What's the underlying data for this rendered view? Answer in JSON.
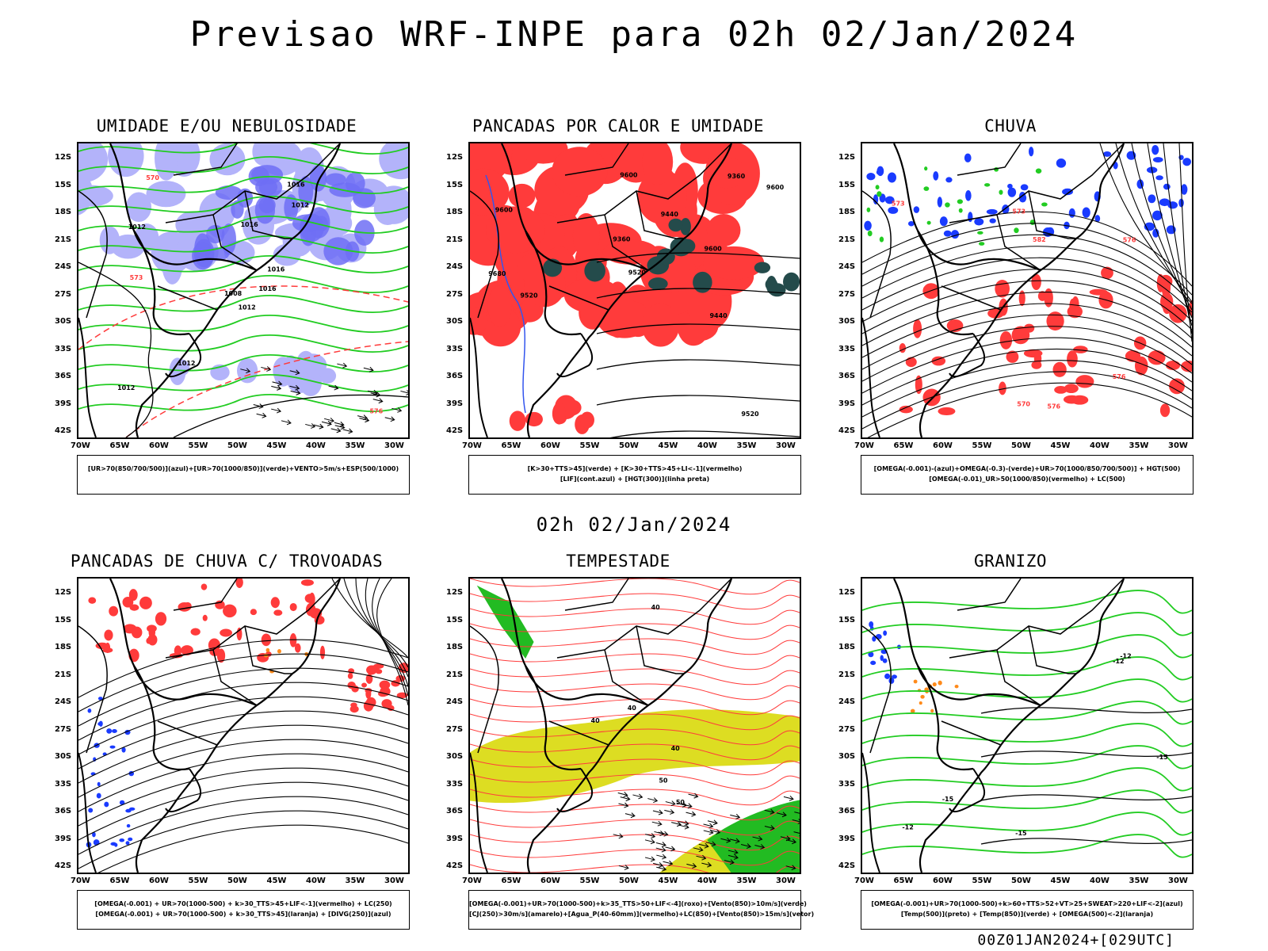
{
  "title": "Previsao WRF-INPE  para 02h 02/Jan/2024",
  "subtitle": "02h 02/Jan/2024",
  "footer": "00Z01JAN2024+[029UTC]",
  "lat_ticks": [
    "12S",
    "15S",
    "18S",
    "21S",
    "24S",
    "27S",
    "30S",
    "33S",
    "36S",
    "39S",
    "42S"
  ],
  "lon_ticks": [
    "70W",
    "65W",
    "60W",
    "55W",
    "50W",
    "45W",
    "40W",
    "35W",
    "30W"
  ],
  "colors": {
    "red_fill": "#ff3b3b",
    "blue_fill": "#6f6ff5",
    "light_blue_fill": "#b3b3fa",
    "green_line": "#22cc22",
    "dark_teal": "#244b4b",
    "yellow_fill": "#dddd22",
    "orange_dot": "#ff8a1a",
    "purple": "#8a00c8"
  },
  "panels": [
    {
      "title": "UMIDADE E/OU NEBULOSIDADE",
      "legend": [
        "[UR>70(850/700/500)](azul)+[UR>70(1000/850)](verde)+VENTO>5m/s+ESP(500/1000)"
      ],
      "contour_labels": [
        "1012",
        "1012",
        "1008",
        "1012",
        "1016",
        "1012",
        "1016",
        "1016",
        "1012",
        "1016",
        "570",
        "576",
        "573"
      ]
    },
    {
      "title": "PANCADAS POR CALOR E UMIDADE",
      "legend": [
        "[K>30+TTS>45](verde) + [K>30+TTS>45+LI<-1](vermelho)",
        "[LIF](cont.azul) + [HGT(300)](linha preta)"
      ],
      "contour_labels": [
        "9680",
        "9600",
        "9600",
        "9600",
        "9600",
        "9520",
        "9520",
        "9440",
        "9360",
        "9360",
        "9520",
        "9440"
      ]
    },
    {
      "title": "CHUVA",
      "legend": [
        "[OMEGA(-0.001)-(azul)+OMEGA(-0.3)-(verde)+UR>70(1000/850/700/500)] + HGT(500)",
        "[OMEGA(-0.01)_UR>50(1000/850)(vermelho) + LC(500)"
      ],
      "contour_labels": [
        "582",
        "576",
        "573",
        "576",
        "570",
        "573",
        "576"
      ]
    },
    {
      "title": "PANCADAS DE CHUVA C/ TROVOADAS",
      "legend": [
        "[OMEGA(-0.001) + UR>70(1000-500) + k>30_TTS>45+LIF<-1](vermelho) + LC(250)",
        "[OMEGA(-0.001) + UR>70(1000-500) + k>30_TTS>45](laranja) + [DIVG(250)](azul)"
      ],
      "contour_labels": []
    },
    {
      "title": "TEMPESTADE",
      "legend": [
        "[OMEGA(-0.001)+UR>70(1000-500)+k>35_TTS>50+LIF<-4](roxo)+[Vento(850)>10m/s](verde)",
        "[CJ(250)>30m/s](amarelo)+[Agua_P(40-60mm)](vermelho)+LC(850)+[Vento(850)>15m/s](vetor)"
      ],
      "contour_labels": [
        "40",
        "40",
        "50",
        "50",
        "40",
        "40"
      ]
    },
    {
      "title": "GRANIZO",
      "legend": [
        "[OMEGA(-0.001)+UR>70(1000-500)+k>60+TTS>52+VT>25+SWEAT>220+LIF<-2](azul)",
        "[Temp(500)](preto) + [Temp(850)](verde) + [OMEGA(500)<-2](laranja)"
      ],
      "contour_labels": [
        "-12",
        "-12",
        "-15",
        "-15",
        "-12",
        "-15"
      ]
    }
  ]
}
